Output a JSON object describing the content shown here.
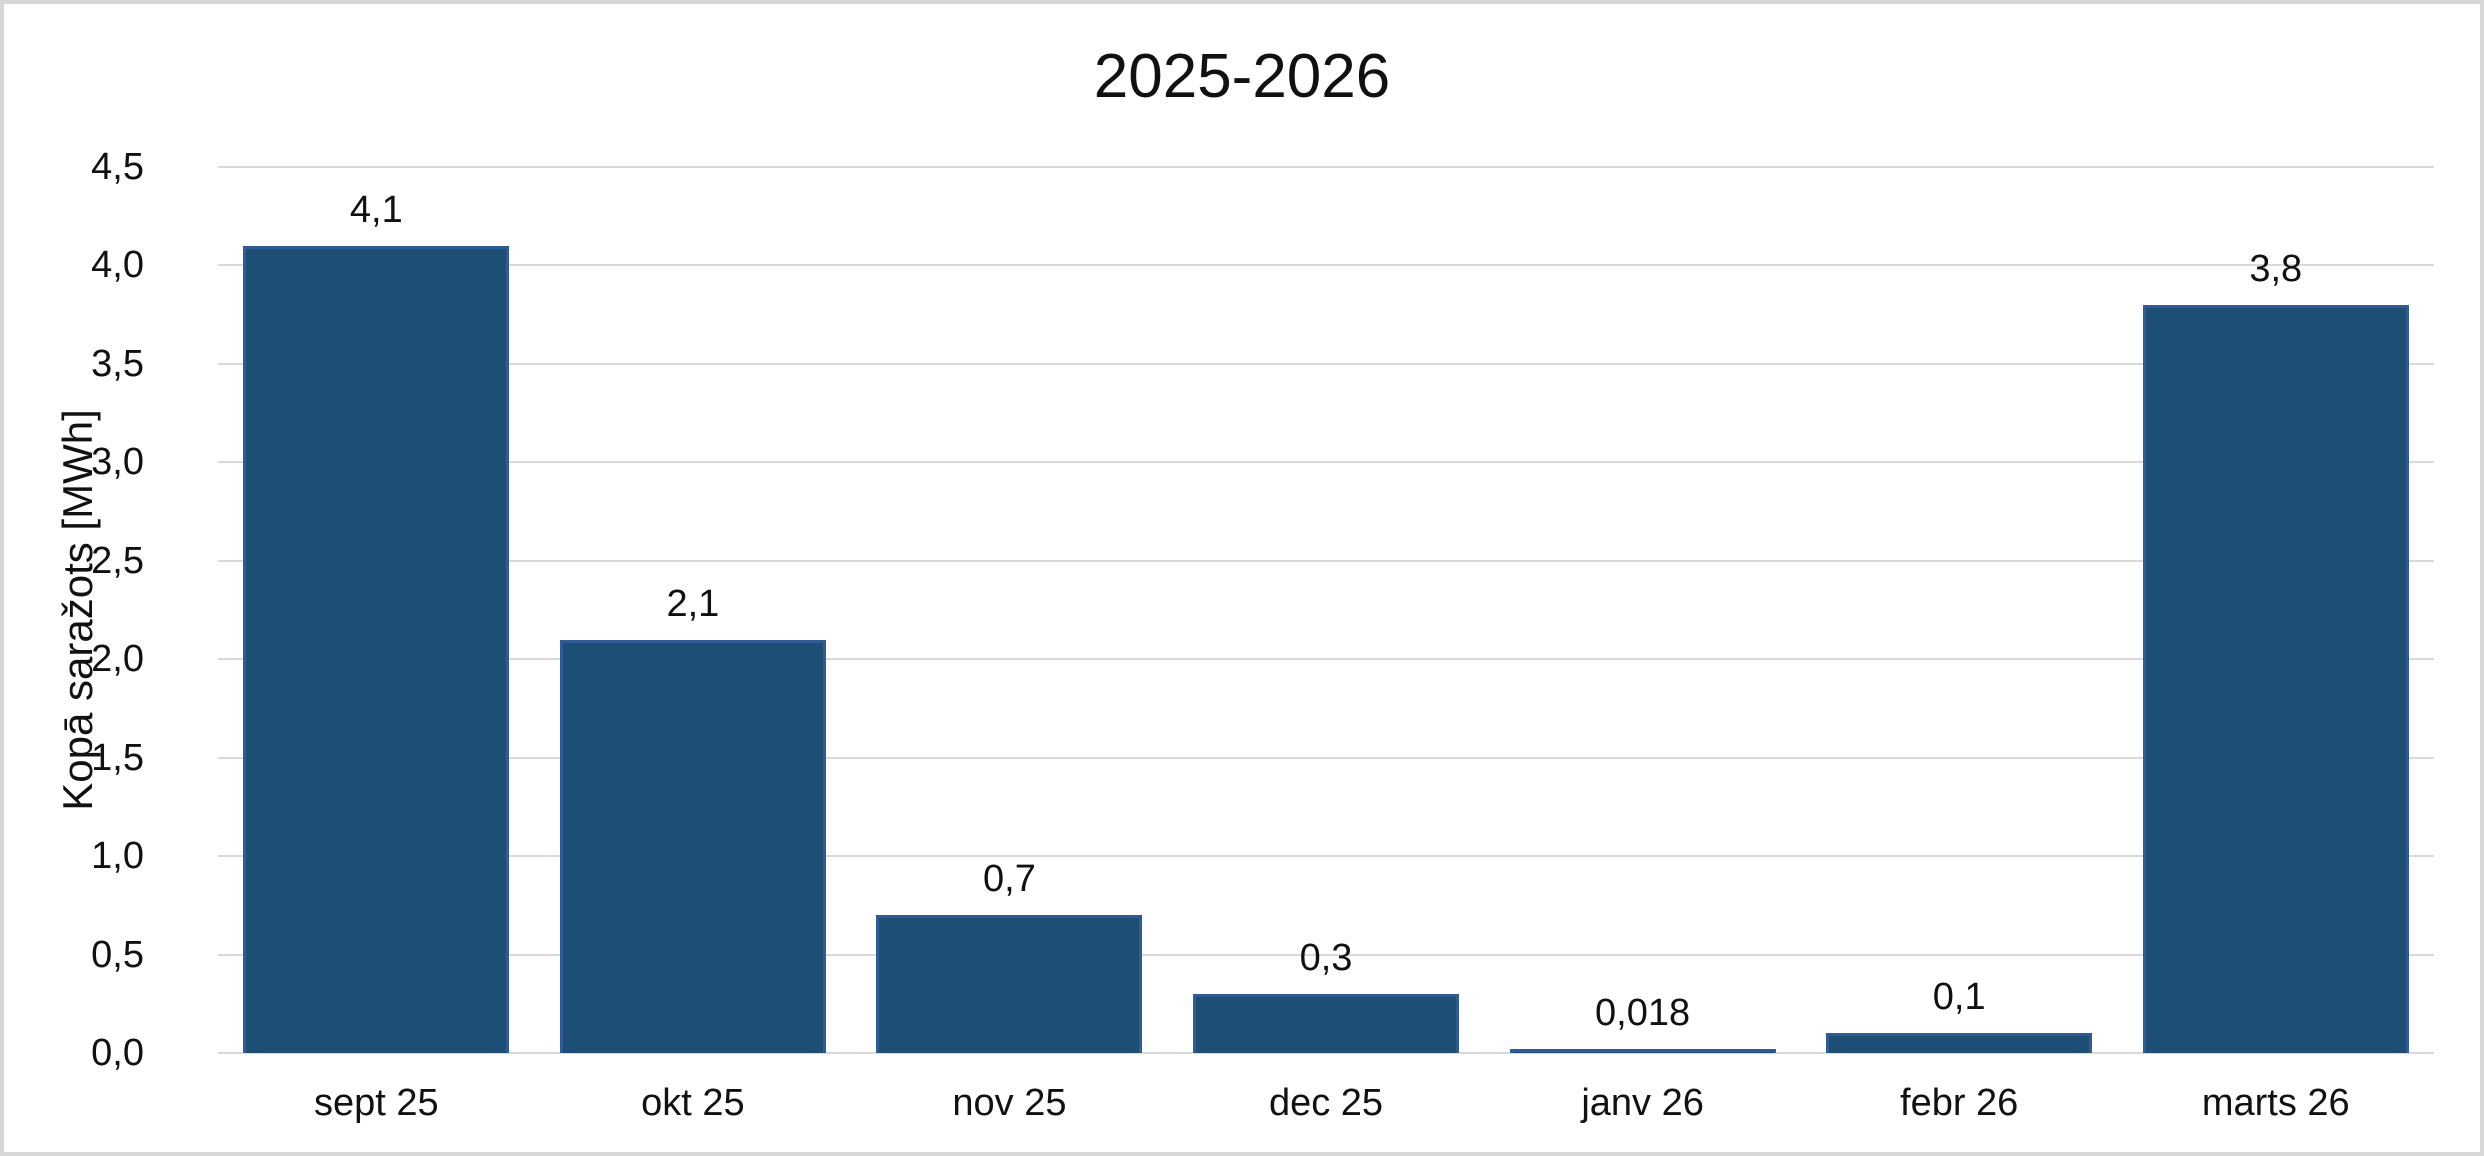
{
  "chart_data": {
    "type": "bar",
    "title": "2025-2026",
    "xlabel": "",
    "ylabel": "Kopā saražots [MWh]",
    "categories": [
      "sept 25",
      "okt 25",
      "nov 25",
      "dec 25",
      "janv 26",
      "febr 26",
      "marts 26"
    ],
    "values": [
      4.1,
      2.1,
      0.7,
      0.3,
      0.018,
      0.1,
      3.8
    ],
    "value_labels": [
      "4,1",
      "2,1",
      "0,7",
      "0,3",
      "0,018",
      "0,1",
      "3,8"
    ],
    "ylim": [
      0,
      4.5
    ],
    "ytick_step": 0.5,
    "ytick_labels": [
      "0,0",
      "0,5",
      "1,0",
      "1,5",
      "2,0",
      "2,5",
      "3,0",
      "3,5",
      "4,0",
      "4,5"
    ],
    "decimal_separator": ",",
    "grid": true,
    "legend_position": "none",
    "colors": {
      "bar_fill": "#1F4E74",
      "bar_border": "#2F5C96",
      "gridline": "#D9D9D9",
      "frame_border": "#D7D7D7",
      "text": "#111111",
      "background": "#FFFFFF"
    }
  }
}
